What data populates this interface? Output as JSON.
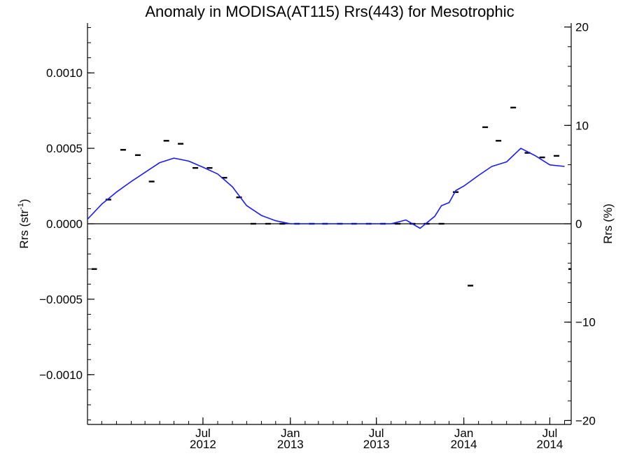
{
  "chart_data": {
    "type": "line",
    "title": "Anomaly in MODISA(AT115) Rrs(443) for Mesotrophic",
    "ylabel": "Rrs (str",
    "ylabel_sup": "-1",
    "ylabel_close": ")",
    "y2label": "Rrs (%)",
    "xlim": [
      "2011-11-01",
      "2014-08-15"
    ],
    "ylim": [
      -0.00133,
      0.00133
    ],
    "y2lim": [
      -20.4,
      20.4
    ],
    "x_ticks": [
      {
        "date": "2012-07-01",
        "line1": "Jul",
        "line2": "2012"
      },
      {
        "date": "2013-01-01",
        "line1": "Jan",
        "line2": "2013"
      },
      {
        "date": "2013-07-01",
        "line1": "Jul",
        "line2": "2013"
      },
      {
        "date": "2014-01-01",
        "line1": "Jan",
        "line2": "2014"
      },
      {
        "date": "2014-07-01",
        "line1": "Jul",
        "line2": "2014"
      }
    ],
    "y_ticks": [
      {
        "value": 0.001,
        "label": "0.0010"
      },
      {
        "value": 0.0005,
        "label": "0.0005"
      },
      {
        "value": 0.0,
        "label": "0.0000"
      },
      {
        "value": -0.0005,
        "label": "−0.0005"
      },
      {
        "value": -0.001,
        "label": "−0.0010"
      }
    ],
    "y2_ticks": [
      {
        "value": 20,
        "label": "20"
      },
      {
        "value": 10,
        "label": "10"
      },
      {
        "value": 0,
        "label": "0"
      },
      {
        "value": -10,
        "label": "−10"
      },
      {
        "value": -20,
        "label": "−20"
      }
    ],
    "zero_line": true,
    "grid": false,
    "series": [
      {
        "kind": "markers",
        "color": "#000000",
        "x": [
          "2011-11-15",
          "2011-12-15",
          "2012-01-15",
          "2012-02-15",
          "2012-03-15",
          "2012-04-15",
          "2012-05-15",
          "2012-06-15",
          "2012-07-15",
          "2012-08-15",
          "2012-09-15",
          "2012-10-15",
          "2012-11-15",
          "2012-12-15",
          "2013-01-15",
          "2013-02-15",
          "2013-03-15",
          "2013-04-15",
          "2013-05-15",
          "2013-06-15",
          "2013-07-15",
          "2013-08-15",
          "2013-09-15",
          "2013-10-15",
          "2013-11-15",
          "2013-12-15",
          "2014-01-15",
          "2014-02-15",
          "2014-03-15",
          "2014-04-15",
          "2014-05-15",
          "2014-06-15",
          "2014-07-15",
          "2014-08-15"
        ],
        "y": [
          -0.0003,
          0.00016,
          0.00049,
          0.000455,
          0.00028,
          0.00055,
          0.00053,
          0.00037,
          0.00037,
          0.000305,
          0.000175,
          0.0,
          0.0,
          0.0,
          0.0,
          0.0,
          0.0,
          0.0,
          0.0,
          0.0,
          0.0,
          0.0,
          0.0,
          0.0,
          0.0,
          0.00021,
          -0.00041,
          0.00064,
          0.00055,
          0.00077,
          0.00047,
          0.00044,
          0.00045,
          -0.0003
        ]
      },
      {
        "kind": "line",
        "color": "#1a1aff",
        "x": [
          "2011-11-01",
          "2011-12-01",
          "2012-01-01",
          "2012-02-01",
          "2012-03-01",
          "2012-04-01",
          "2012-05-01",
          "2012-06-01",
          "2012-07-01",
          "2012-08-01",
          "2012-09-01",
          "2012-10-01",
          "2012-11-01",
          "2012-12-01",
          "2013-01-01",
          "2013-02-01",
          "2013-03-01",
          "2013-04-01",
          "2013-05-01",
          "2013-06-01",
          "2013-07-01",
          "2013-08-01",
          "2013-09-01",
          "2013-10-01",
          "2013-11-01",
          "2013-11-15",
          "2013-12-01",
          "2013-12-15",
          "2014-01-01",
          "2014-02-01",
          "2014-03-01",
          "2014-04-01",
          "2014-05-01",
          "2014-06-01",
          "2014-07-01",
          "2014-08-01"
        ],
        "y": [
          3e-05,
          0.00013,
          0.00021,
          0.00028,
          0.00034,
          0.000405,
          0.000435,
          0.000415,
          0.000375,
          0.00033,
          0.000245,
          0.00012,
          5.5e-05,
          2e-05,
          0.0,
          0.0,
          0.0,
          0.0,
          0.0,
          0.0,
          0.0,
          0.0,
          2.5e-05,
          -3e-05,
          5e-05,
          0.00012,
          0.00014,
          0.00022,
          0.00025,
          0.00032,
          0.00038,
          0.00041,
          0.0005,
          0.00045,
          0.00039,
          0.00038
        ]
      }
    ]
  }
}
